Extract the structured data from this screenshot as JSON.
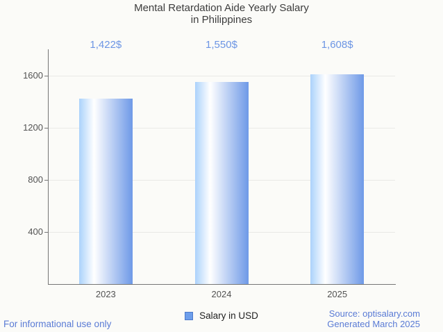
{
  "title": {
    "line1": "Mental Retardation Aide Yearly Salary",
    "line2": "in Philippines"
  },
  "chart_data": {
    "type": "bar",
    "title": "Mental Retardation Aide Yearly Salary in Philippines",
    "categories": [
      "2023",
      "2024",
      "2025"
    ],
    "values": [
      1422,
      1550,
      1608
    ],
    "value_labels": [
      "1,422$",
      "1,550$",
      "1,608$"
    ],
    "series": [
      {
        "name": "Salary in USD",
        "values": [
          1422,
          1550,
          1608
        ]
      }
    ],
    "xlabel": "",
    "ylabel": "",
    "yticks": [
      400,
      800,
      1200,
      1600
    ],
    "ylim": [
      0,
      1800
    ],
    "grid": true,
    "legend_position": "bottom"
  },
  "legend": {
    "label": "Salary in USD"
  },
  "footer": {
    "left": "For informational use only",
    "source": "Source: optisalary.com",
    "generated": "Generated March 2025"
  },
  "colors": {
    "background": "#FBFBF8",
    "title_text": "#3C3C3C",
    "annotation": "#6C95E4",
    "footer_text": "#5A7BD5",
    "tick_label": "#525252",
    "legend_text": "#1F1F1F",
    "axis": "#757575",
    "grid": "#E9E9E6",
    "legend_swatch": "#6D9EEB",
    "legend_swatch_border": "#4C79CA",
    "bar_gradient_left": "#ABD2FB",
    "bar_gradient_mid": "#FFFFFF",
    "bar_gradient_right": "#6E99E7"
  }
}
